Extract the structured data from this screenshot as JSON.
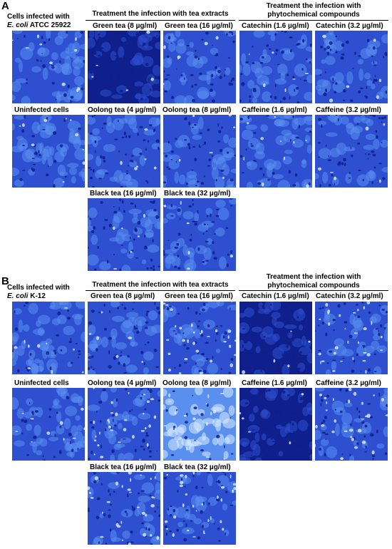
{
  "colors": {
    "stain_dark": "#0f1f8c",
    "stain_mid": "#2d4fd0",
    "stain_light": "#5a8ff0",
    "cell_highlight": "#d8ecff"
  },
  "panelA": {
    "letter": "A",
    "infected_label_line1": "Cells infected with",
    "infected_label_italic": "E. coli",
    "infected_label_rest": "ATCC 25922",
    "tea_header": "Treatment the infection with tea extracts",
    "phyto_header_line1": "Treatment the infection with",
    "phyto_header_line2": "phytochemical compounds",
    "labels": {
      "uninfected": "Uninfected cells",
      "green8": "Green tea (8 µg/ml)",
      "green16": "Green tea (16 µg/ml)",
      "oolong4": "Oolong tea (4 µg/ml)",
      "oolong8": "Oolong tea (8 µg/ml)",
      "black16": "Black tea (16 µg/ml)",
      "black32": "Black tea (32 µg/ml)",
      "catechin16": "Catechin (1.6 µg/ml)",
      "catechin32": "Catechin (3.2 µg/ml)",
      "caffeine16": "Caffeine (1.6 µg/ml)",
      "caffeine32": "Caffeine (3.2 µg/ml)"
    }
  },
  "panelB": {
    "letter": "B",
    "infected_label_line1": "Cells infected with",
    "infected_label_italic": "E. coli",
    "infected_label_rest": "K-12",
    "tea_header": "Treatment the infection with tea extracts",
    "phyto_header_line1": "Treatment the infection with",
    "phyto_header_line2": "phytochemical compounds",
    "labels": {
      "uninfected": "Uninfected cells",
      "green8": "Green tea (8 µg/ml)",
      "green16": "Green tea (16 µg/ml)",
      "oolong4": "Oolong tea (4 µg/ml)",
      "oolong8": "Oolong tea (8 µg/ml)",
      "black16": "Black tea (16 µg/ml)",
      "black32": "Black tea (32 µg/ml)",
      "catechin16": "Catechin (1.6 µg/ml)",
      "catechin32": "Catechin (3.2 µg/ml)",
      "caffeine16": "Caffeine (1.6 µg/ml)",
      "caffeine32": "Caffeine (3.2 µg/ml)"
    }
  }
}
